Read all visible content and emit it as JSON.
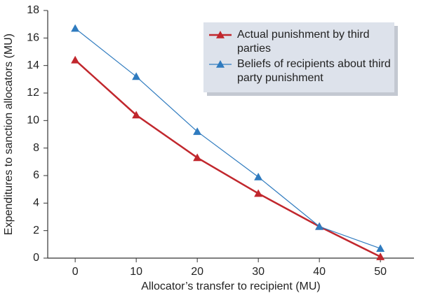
{
  "chart_data": {
    "type": "line",
    "x_label": "Allocator’s transfer to recipient (MU)",
    "y_label": "Expenditures to sanction allocators (MU)",
    "x": [
      0,
      10,
      20,
      30,
      40,
      50
    ],
    "series": [
      {
        "name": "Actual punishment by third parties",
        "color": "#c1272d",
        "values": [
          14.4,
          10.4,
          7.3,
          4.7,
          2.3,
          0.1
        ]
      },
      {
        "name": "Beliefs of recipients about third party punishment",
        "color": "#2f7bbf",
        "values": [
          16.7,
          13.2,
          9.2,
          5.9,
          2.3,
          0.7
        ]
      }
    ],
    "xlim": [
      -4.5,
      55.5
    ],
    "xticks": [
      0,
      10,
      20,
      30,
      40,
      50
    ],
    "ylim": [
      0,
      18
    ],
    "yticks": [
      0,
      2,
      4,
      6,
      8,
      10,
      12,
      14,
      16,
      18
    ],
    "legend": "upper right"
  }
}
